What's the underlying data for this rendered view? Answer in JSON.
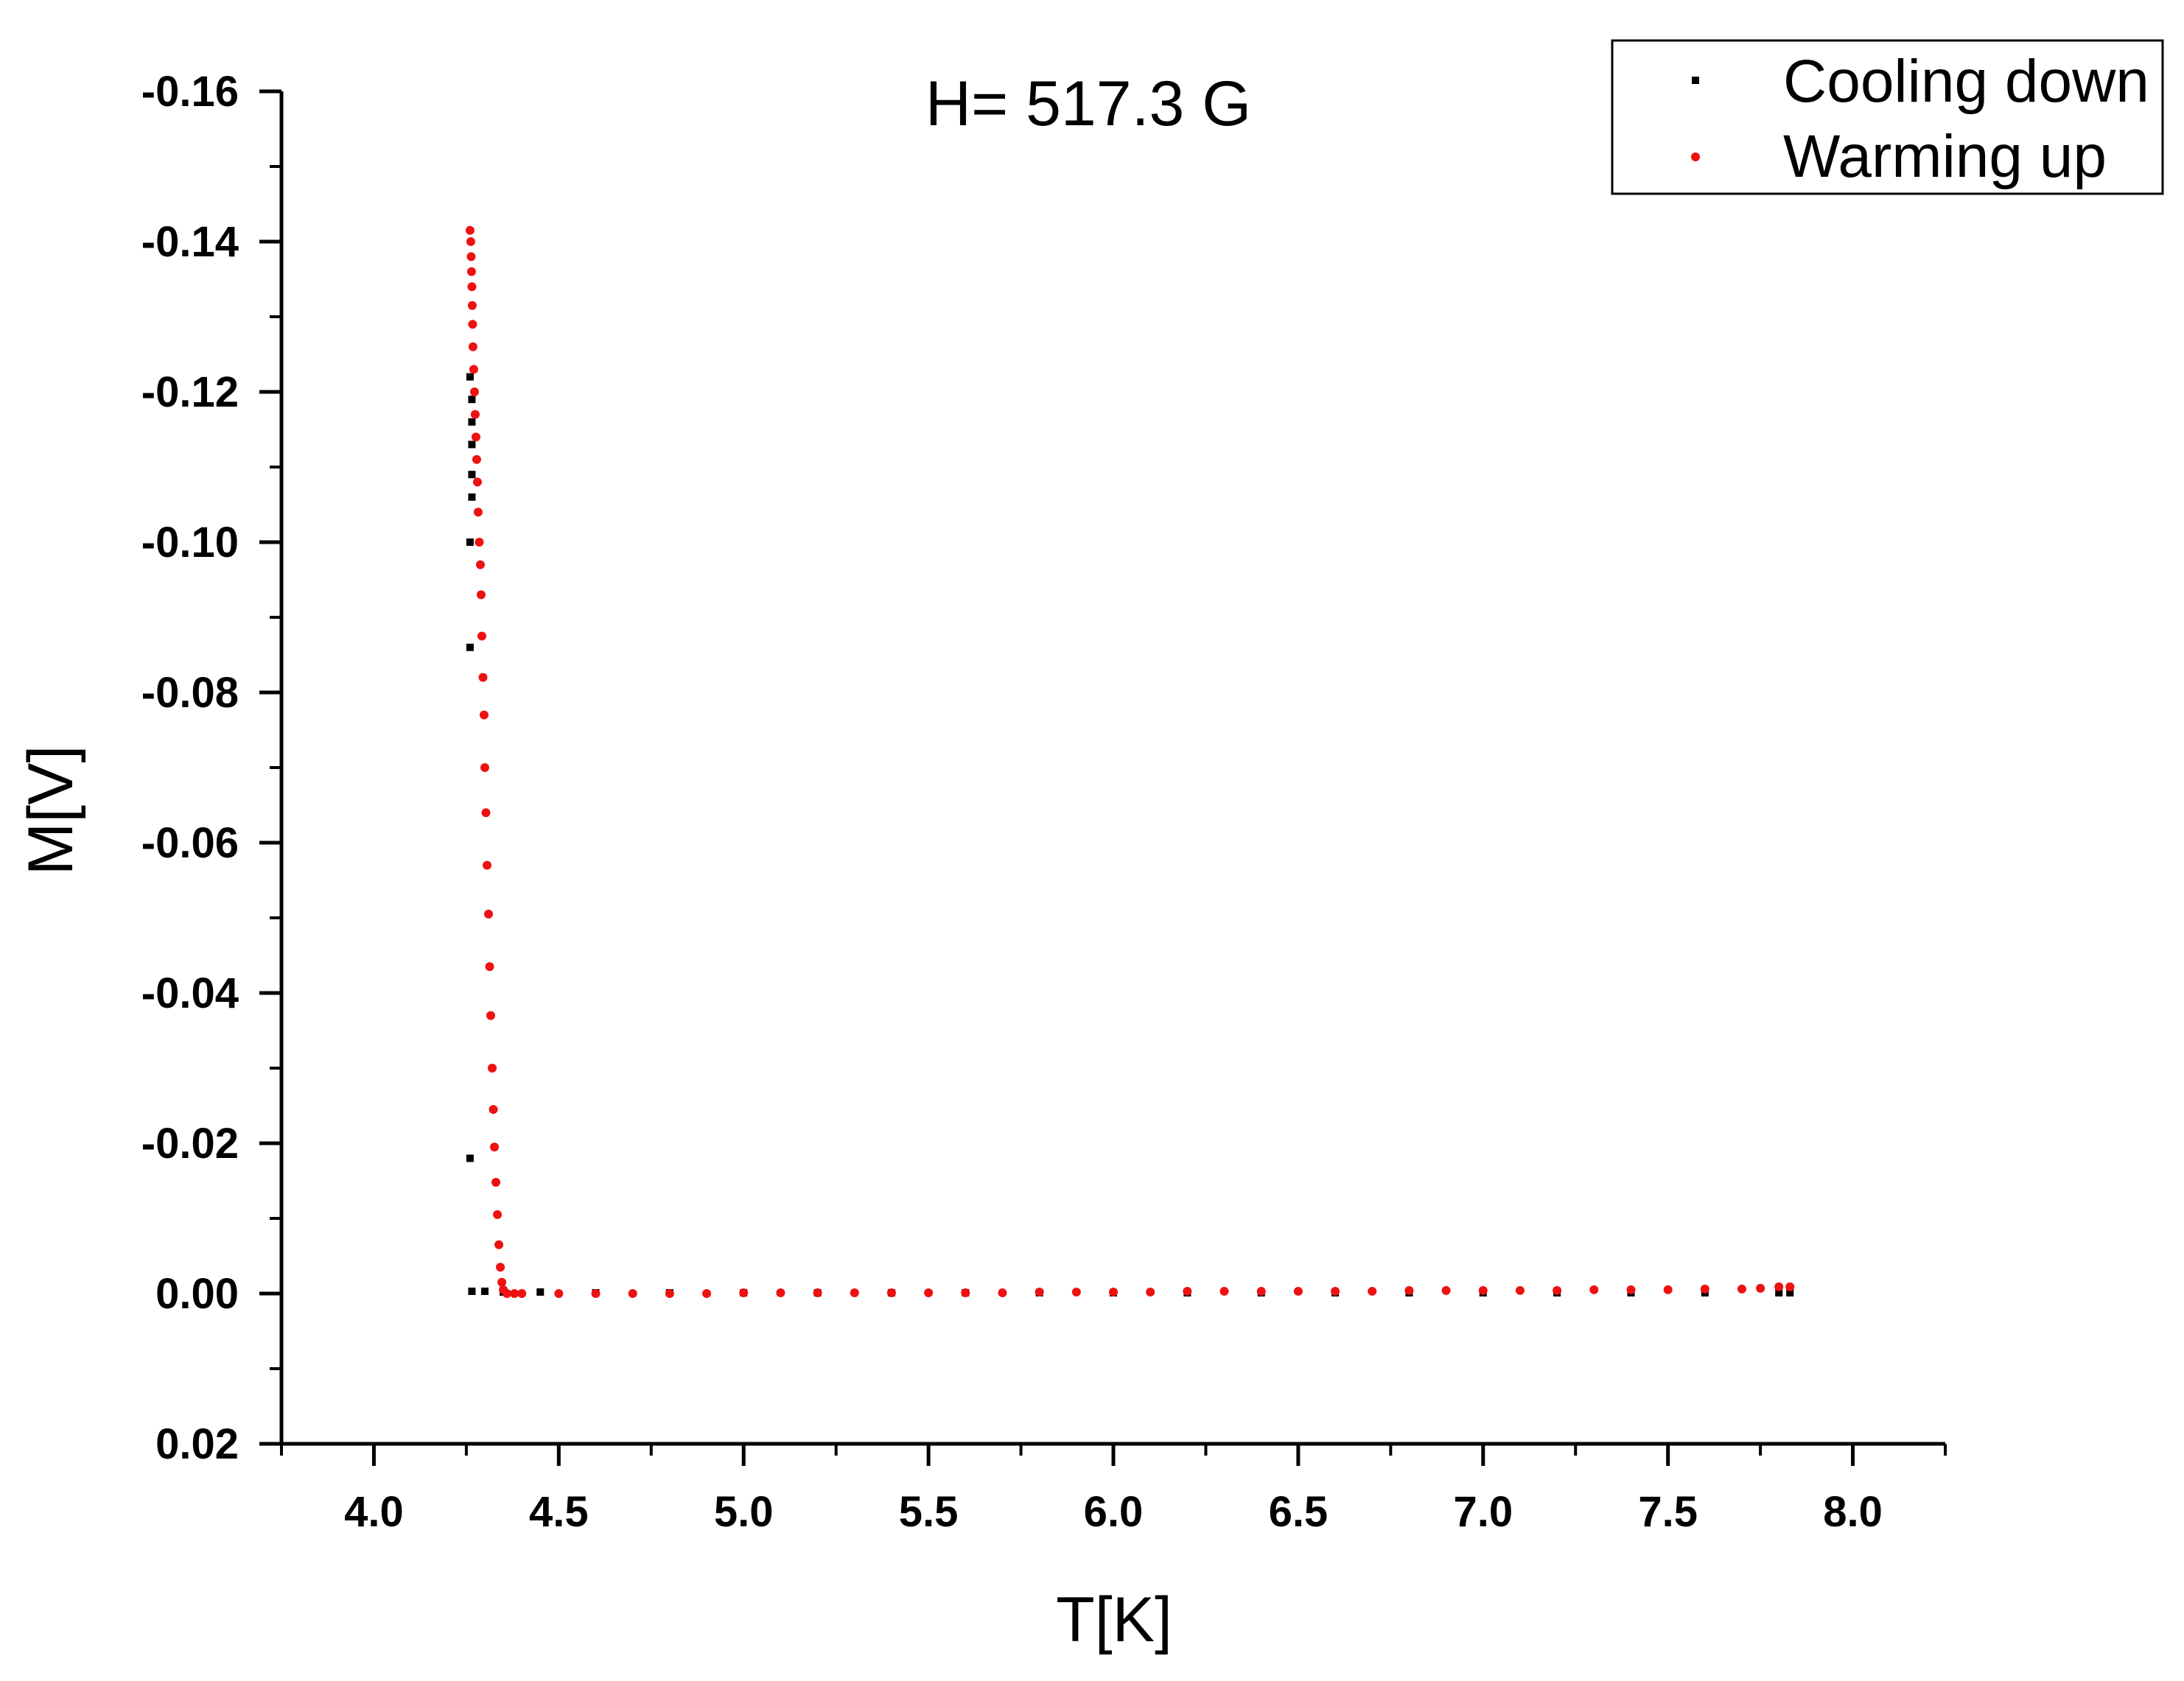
{
  "chart_data": {
    "type": "scatter",
    "title": "H= 517.3 G",
    "xlabel": "T[K]",
    "ylabel": "M[V]",
    "xlim": [
      3.75,
      8.25
    ],
    "ylim": [
      0.02,
      -0.16
    ],
    "y_axis_inverted": true,
    "grid": false,
    "legend_placement": "top-right",
    "x_ticks": [
      4.0,
      4.5,
      5.0,
      5.5,
      6.0,
      6.5,
      7.0,
      7.5,
      8.0
    ],
    "x_tick_labels": [
      "4.0",
      "4.5",
      "5.0",
      "5.5",
      "6.0",
      "6.5",
      "7.0",
      "7.5",
      "8.0"
    ],
    "y_ticks": [
      -0.16,
      -0.14,
      -0.12,
      -0.1,
      -0.08,
      -0.06,
      -0.04,
      -0.02,
      0.0,
      0.02
    ],
    "y_tick_labels": [
      "-0.16",
      "-0.14",
      "-0.12",
      "-0.10",
      "-0.08",
      "-0.06",
      "-0.04",
      "-0.02",
      "0.00",
      "0.02"
    ],
    "series": [
      {
        "name": "Cooling down",
        "color": "#000000",
        "marker": "square",
        "points": [
          [
            4.26,
            -0.122
          ],
          [
            4.265,
            -0.119
          ],
          [
            4.265,
            -0.116
          ],
          [
            4.265,
            -0.113
          ],
          [
            4.265,
            -0.109
          ],
          [
            4.265,
            -0.106
          ],
          [
            4.26,
            -0.1
          ],
          [
            4.26,
            -0.086
          ],
          [
            4.26,
            -0.018
          ],
          [
            4.265,
            -0.0003
          ],
          [
            4.3,
            -0.0003
          ],
          [
            4.35,
            -0.0002
          ],
          [
            4.45,
            -0.0002
          ],
          [
            4.6,
            -0.0001
          ],
          [
            4.8,
            -0.0001
          ],
          [
            5.0,
            -0.0001
          ],
          [
            5.2,
            -0.0001
          ],
          [
            5.4,
            -0.0001
          ],
          [
            5.6,
            -0.0001
          ],
          [
            5.8,
            -0.0001
          ],
          [
            6.0,
            -0.0001
          ],
          [
            6.2,
            -0.0001
          ],
          [
            6.4,
            -0.0001
          ],
          [
            6.6,
            -0.0001
          ],
          [
            6.8,
            -0.0001
          ],
          [
            7.0,
            -0.0001
          ],
          [
            7.2,
            -0.0001
          ],
          [
            7.4,
            -0.0001
          ],
          [
            7.6,
            -0.0001
          ],
          [
            7.8,
            -0.0001
          ],
          [
            7.83,
            -0.0001
          ]
        ]
      },
      {
        "name": "Warming up",
        "color": "#ee1111",
        "marker": "circle",
        "points": [
          [
            4.26,
            -0.1415
          ],
          [
            4.262,
            -0.14
          ],
          [
            4.263,
            -0.138
          ],
          [
            4.264,
            -0.136
          ],
          [
            4.265,
            -0.134
          ],
          [
            4.266,
            -0.1315
          ],
          [
            4.267,
            -0.129
          ],
          [
            4.268,
            -0.126
          ],
          [
            4.27,
            -0.123
          ],
          [
            4.272,
            -0.12
          ],
          [
            4.274,
            -0.117
          ],
          [
            4.276,
            -0.114
          ],
          [
            4.278,
            -0.111
          ],
          [
            4.28,
            -0.108
          ],
          [
            4.282,
            -0.104
          ],
          [
            4.285,
            -0.1
          ],
          [
            4.288,
            -0.097
          ],
          [
            4.29,
            -0.093
          ],
          [
            4.292,
            -0.0875
          ],
          [
            4.295,
            -0.082
          ],
          [
            4.298,
            -0.077
          ],
          [
            4.3,
            -0.07
          ],
          [
            4.303,
            -0.064
          ],
          [
            4.306,
            -0.057
          ],
          [
            4.31,
            -0.0505
          ],
          [
            4.313,
            -0.0435
          ],
          [
            4.316,
            -0.037
          ],
          [
            4.32,
            -0.03
          ],
          [
            4.323,
            -0.0245
          ],
          [
            4.326,
            -0.0195
          ],
          [
            4.33,
            -0.0148
          ],
          [
            4.334,
            -0.0105
          ],
          [
            4.338,
            -0.0065
          ],
          [
            4.342,
            -0.0035
          ],
          [
            4.346,
            -0.0015
          ],
          [
            4.35,
            -0.0005
          ],
          [
            4.36,
            0.0
          ],
          [
            4.38,
            0.0
          ],
          [
            4.4,
            0.0
          ],
          [
            4.5,
            0.0
          ],
          [
            4.6,
            0.0
          ],
          [
            4.7,
            0.0
          ],
          [
            4.8,
            0.0
          ],
          [
            4.9,
            0.0
          ],
          [
            5.0,
            -0.0001
          ],
          [
            5.1,
            -0.0001
          ],
          [
            5.2,
            -0.0001
          ],
          [
            5.3,
            -0.0001
          ],
          [
            5.4,
            -0.0001
          ],
          [
            5.5,
            -0.0001
          ],
          [
            5.6,
            -0.0001
          ],
          [
            5.7,
            -0.0001
          ],
          [
            5.8,
            -0.0002
          ],
          [
            5.9,
            -0.0002
          ],
          [
            6.0,
            -0.0002
          ],
          [
            6.1,
            -0.0002
          ],
          [
            6.2,
            -0.0003
          ],
          [
            6.3,
            -0.0003
          ],
          [
            6.4,
            -0.0003
          ],
          [
            6.5,
            -0.0003
          ],
          [
            6.6,
            -0.0003
          ],
          [
            6.7,
            -0.0003
          ],
          [
            6.8,
            -0.0004
          ],
          [
            6.9,
            -0.0004
          ],
          [
            7.0,
            -0.0004
          ],
          [
            7.1,
            -0.0004
          ],
          [
            7.2,
            -0.0004
          ],
          [
            7.3,
            -0.0005
          ],
          [
            7.4,
            -0.0005
          ],
          [
            7.5,
            -0.0005
          ],
          [
            7.6,
            -0.0006
          ],
          [
            7.7,
            -0.0006
          ],
          [
            7.75,
            -0.0007
          ],
          [
            7.8,
            -0.0009
          ],
          [
            7.83,
            -0.0009
          ]
        ]
      }
    ]
  }
}
